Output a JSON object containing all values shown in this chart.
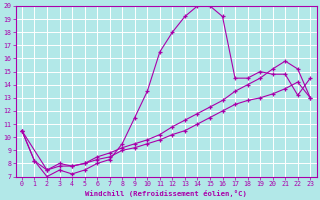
{
  "xlabel": "Windchill (Refroidissement éolien,°C)",
  "bg_color": "#b2e8e8",
  "grid_color": "#ffffff",
  "line_color": "#aa00aa",
  "xlim": [
    -0.5,
    23.5
  ],
  "ylim": [
    7,
    20
  ],
  "xticks": [
    0,
    1,
    2,
    3,
    4,
    5,
    6,
    7,
    8,
    9,
    10,
    11,
    12,
    13,
    14,
    15,
    16,
    17,
    18,
    19,
    20,
    21,
    22,
    23
  ],
  "yticks": [
    7,
    8,
    9,
    10,
    11,
    12,
    13,
    14,
    15,
    16,
    17,
    18,
    19,
    20
  ],
  "s1_x": [
    0,
    1,
    2,
    3,
    4,
    5,
    6,
    7,
    8,
    9,
    10,
    11,
    12,
    13,
    14,
    15,
    16,
    17,
    18,
    19,
    20,
    21,
    22,
    23
  ],
  "s1_y": [
    10.5,
    8.2,
    7.0,
    7.5,
    7.2,
    7.5,
    8.0,
    8.3,
    9.5,
    11.5,
    13.5,
    16.5,
    18.0,
    19.2,
    20.0,
    20.0,
    19.2,
    14.5,
    14.5,
    15.0,
    14.8,
    14.8,
    13.2,
    14.5
  ],
  "s2_x": [
    0,
    1,
    2,
    3,
    4,
    5,
    6,
    7,
    8,
    9,
    10,
    11,
    12,
    13,
    14,
    15,
    16,
    17,
    18,
    19,
    20,
    21,
    22,
    23
  ],
  "s2_y": [
    10.5,
    8.2,
    7.5,
    8.0,
    7.8,
    8.0,
    8.5,
    8.8,
    9.2,
    9.5,
    9.8,
    10.2,
    10.8,
    11.3,
    11.8,
    12.3,
    12.8,
    13.5,
    14.0,
    14.5,
    15.2,
    15.8,
    15.2,
    13.0
  ],
  "s3_x": [
    0,
    2,
    3,
    4,
    5,
    6,
    7,
    8,
    9,
    10,
    11,
    12,
    13,
    14,
    15,
    16,
    17,
    18,
    19,
    20,
    21,
    22,
    23
  ],
  "s3_y": [
    10.5,
    7.5,
    7.8,
    7.8,
    8.0,
    8.3,
    8.5,
    9.0,
    9.2,
    9.5,
    9.8,
    10.2,
    10.5,
    11.0,
    11.5,
    12.0,
    12.5,
    12.8,
    13.0,
    13.3,
    13.7,
    14.2,
    13.0
  ]
}
